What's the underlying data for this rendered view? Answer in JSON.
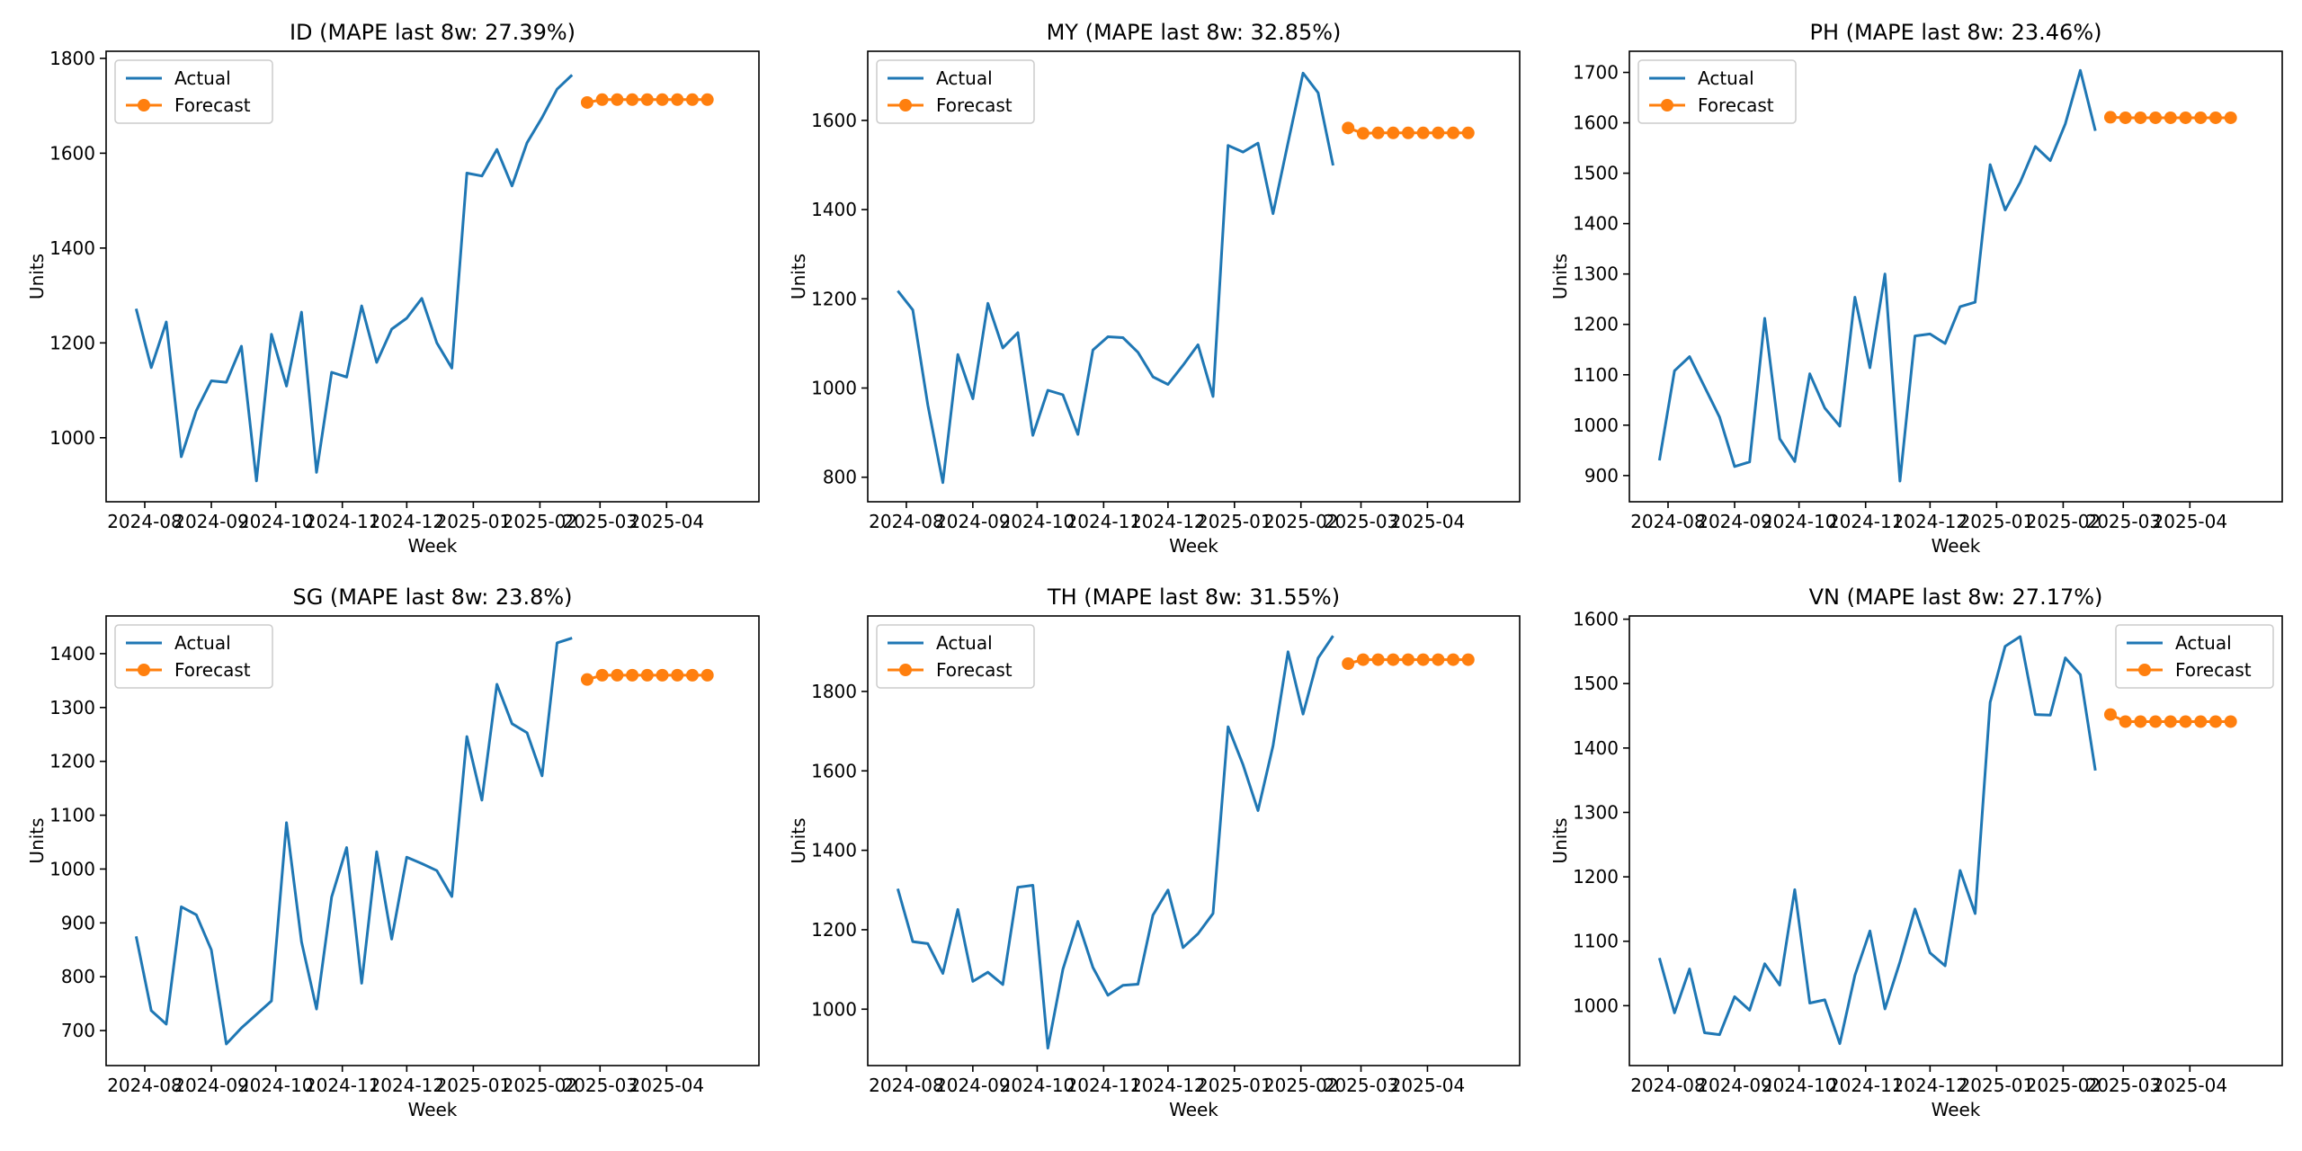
{
  "figure": {
    "colors": {
      "actual": "#1f77b4",
      "forecast": "#ff7f0e",
      "axes": "#000000",
      "legend_border": "#cccccc"
    }
  },
  "chart_data": [
    {
      "type": "line",
      "title": "ID (MAPE last 8w: 27.39%)",
      "xlabel": "Week",
      "ylabel": "Units",
      "xlim": [
        "2024-07-14",
        "2025-05-14"
      ],
      "ylim": [
        865,
        1815
      ],
      "yticks": [
        1000,
        1200,
        1400,
        1600,
        1800
      ],
      "xticks": [
        "2024-08",
        "2024-09",
        "2024-10",
        "2024-11",
        "2024-12",
        "2025-01",
        "2025-02",
        "2025-03",
        "2025-04"
      ],
      "legend": {
        "placement": "upper left",
        "entries": [
          "Actual",
          "Forecast"
        ]
      },
      "grid": false,
      "series": [
        {
          "name": "Actual",
          "style": "line",
          "start": "2024-07-28",
          "step_days": 7,
          "values": [
            1272,
            1148,
            1244,
            960,
            1057,
            1120,
            1117,
            1193,
            909,
            1218,
            1109,
            1265,
            927,
            1138,
            1128,
            1278,
            1159,
            1229,
            1252,
            1294,
            1200,
            1147,
            1558,
            1552,
            1608,
            1531,
            1622,
            1675,
            1735,
            1765
          ]
        },
        {
          "name": "Forecast",
          "style": "line-marker",
          "start": "2025-02-23",
          "step_days": 7,
          "values": [
            1707,
            1713,
            1713,
            1713,
            1713,
            1713,
            1713,
            1713,
            1713
          ]
        }
      ]
    },
    {
      "type": "line",
      "title": "MY (MAPE last 8w: 32.85%)",
      "xlabel": "Week",
      "ylabel": "Units",
      "xlim": [
        "2024-07-14",
        "2025-05-14"
      ],
      "ylim": [
        745,
        1755
      ],
      "yticks": [
        800,
        1000,
        1200,
        1400,
        1600
      ],
      "xticks": [
        "2024-08",
        "2024-09",
        "2024-10",
        "2024-11",
        "2024-12",
        "2025-01",
        "2025-02",
        "2025-03",
        "2025-04"
      ],
      "legend": {
        "placement": "upper left",
        "entries": [
          "Actual",
          "Forecast"
        ]
      },
      "grid": false,
      "series": [
        {
          "name": "Actual",
          "style": "line",
          "start": "2024-07-28",
          "step_days": 7,
          "values": [
            1218,
            1175,
            962,
            788,
            1075,
            976,
            1190,
            1090,
            1124,
            894,
            995,
            985,
            896,
            1085,
            1115,
            1113,
            1080,
            1025,
            1008,
            1051,
            1097,
            981,
            1544,
            1529,
            1549,
            1391,
            1550,
            1706,
            1662,
            1499
          ]
        },
        {
          "name": "Forecast",
          "style": "line-marker",
          "start": "2025-02-23",
          "step_days": 7,
          "values": [
            1583,
            1571,
            1572,
            1572,
            1572,
            1572,
            1572,
            1572,
            1572
          ]
        }
      ]
    },
    {
      "type": "line",
      "title": "PH (MAPE last 8w: 23.46%)",
      "xlabel": "Week",
      "ylabel": "Units",
      "xlim": [
        "2024-07-14",
        "2025-05-14"
      ],
      "ylim": [
        848,
        1742
      ],
      "yticks": [
        900,
        1000,
        1100,
        1200,
        1300,
        1400,
        1500,
        1600,
        1700
      ],
      "xticks": [
        "2024-08",
        "2024-09",
        "2024-10",
        "2024-11",
        "2024-12",
        "2025-01",
        "2025-02",
        "2025-03",
        "2025-04"
      ],
      "legend": {
        "placement": "upper left",
        "entries": [
          "Actual",
          "Forecast"
        ]
      },
      "grid": false,
      "series": [
        {
          "name": "Actual",
          "style": "line",
          "start": "2024-07-28",
          "step_days": 7,
          "values": [
            930,
            1108,
            1136,
            1076,
            1016,
            918,
            927,
            1212,
            973,
            928,
            1102,
            1034,
            998,
            1254,
            1114,
            1300,
            889,
            1177,
            1181,
            1162,
            1235,
            1244,
            1517,
            1427,
            1482,
            1553,
            1525,
            1598,
            1704,
            1584
          ]
        },
        {
          "name": "Forecast",
          "style": "line-marker",
          "start": "2025-02-23",
          "step_days": 7,
          "values": [
            1611,
            1610,
            1610,
            1610,
            1610,
            1610,
            1610,
            1610,
            1610
          ]
        }
      ]
    },
    {
      "type": "line",
      "title": "SG (MAPE last 8w: 23.8%)",
      "xlabel": "Week",
      "ylabel": "Units",
      "xlim": [
        "2024-07-14",
        "2025-05-14"
      ],
      "ylim": [
        635,
        1470
      ],
      "yticks": [
        700,
        800,
        900,
        1000,
        1100,
        1200,
        1300,
        1400
      ],
      "xticks": [
        "2024-08",
        "2024-09",
        "2024-10",
        "2024-11",
        "2024-12",
        "2025-01",
        "2025-02",
        "2025-03",
        "2025-04"
      ],
      "legend": {
        "placement": "upper left",
        "entries": [
          "Actual",
          "Forecast"
        ]
      },
      "grid": false,
      "series": [
        {
          "name": "Actual",
          "style": "line",
          "start": "2024-07-28",
          "step_days": 7,
          "values": [
            875,
            737,
            712,
            930,
            915,
            850,
            675,
            705,
            730,
            755,
            1086,
            865,
            740,
            948,
            1040,
            788,
            1032,
            870,
            1022,
            1010,
            997,
            949,
            1246,
            1128,
            1343,
            1270,
            1253,
            1173,
            1420,
            1429
          ]
        },
        {
          "name": "Forecast",
          "style": "line-marker",
          "start": "2025-02-23",
          "step_days": 7,
          "values": [
            1352,
            1360,
            1360,
            1360,
            1360,
            1360,
            1360,
            1360,
            1360
          ]
        }
      ]
    },
    {
      "type": "line",
      "title": "TH (MAPE last 8w: 31.55%)",
      "xlabel": "Week",
      "ylabel": "Units",
      "xlim": [
        "2024-07-14",
        "2025-05-14"
      ],
      "ylim": [
        858,
        1990
      ],
      "yticks": [
        1000,
        1200,
        1400,
        1600,
        1800
      ],
      "xticks": [
        "2024-08",
        "2024-09",
        "2024-10",
        "2024-11",
        "2024-12",
        "2025-01",
        "2025-02",
        "2025-03",
        "2025-04"
      ],
      "legend": {
        "placement": "upper left",
        "entries": [
          "Actual",
          "Forecast"
        ]
      },
      "grid": false,
      "series": [
        {
          "name": "Actual",
          "style": "line",
          "start": "2024-07-28",
          "step_days": 7,
          "values": [
            1303,
            1170,
            1165,
            1090,
            1251,
            1070,
            1093,
            1062,
            1307,
            1312,
            902,
            1100,
            1221,
            1105,
            1035,
            1060,
            1063,
            1237,
            1300,
            1155,
            1190,
            1241,
            1711,
            1615,
            1500,
            1663,
            1900,
            1743,
            1884,
            1940
          ]
        },
        {
          "name": "Forecast",
          "style": "line-marker",
          "start": "2025-02-23",
          "step_days": 7,
          "values": [
            1870,
            1880,
            1880,
            1880,
            1880,
            1880,
            1880,
            1880,
            1880
          ]
        }
      ]
    },
    {
      "type": "line",
      "title": "VN (MAPE last 8w: 27.17%)",
      "xlabel": "Week",
      "ylabel": "Units",
      "xlim": [
        "2024-07-14",
        "2025-05-14"
      ],
      "ylim": [
        907,
        1605
      ],
      "yticks": [
        1000,
        1100,
        1200,
        1300,
        1400,
        1500,
        1600
      ],
      "xticks": [
        "2024-08",
        "2024-09",
        "2024-10",
        "2024-11",
        "2024-12",
        "2025-01",
        "2025-02",
        "2025-03",
        "2025-04"
      ],
      "legend": {
        "placement": "upper right",
        "entries": [
          "Actual",
          "Forecast"
        ]
      },
      "grid": false,
      "series": [
        {
          "name": "Actual",
          "style": "line",
          "start": "2024-07-28",
          "step_days": 7,
          "values": [
            1074,
            989,
            1057,
            958,
            955,
            1014,
            993,
            1065,
            1032,
            1180,
            1004,
            1009,
            941,
            1047,
            1116,
            995,
            1068,
            1150,
            1082,
            1062,
            1210,
            1143,
            1471,
            1558,
            1573,
            1452,
            1451,
            1540,
            1514,
            1365
          ]
        },
        {
          "name": "Forecast",
          "style": "line-marker",
          "start": "2025-02-23",
          "step_days": 7,
          "values": [
            1452,
            1441,
            1441,
            1441,
            1441,
            1441,
            1441,
            1441,
            1441
          ]
        }
      ]
    }
  ]
}
